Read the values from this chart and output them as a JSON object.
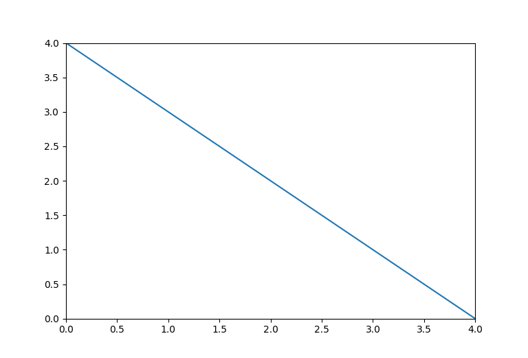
{
  "x": [
    0.0,
    4.0
  ],
  "y": [
    4.0,
    0.0
  ],
  "line_color": "#1f77b4",
  "line_width": 1.5,
  "xlim": [
    0.0,
    4.0
  ],
  "ylim": [
    0.0,
    4.0
  ],
  "xticks": [
    0.0,
    0.5,
    1.0,
    1.5,
    2.0,
    2.5,
    3.0,
    3.5,
    4.0
  ],
  "yticks": [
    0.0,
    0.5,
    1.0,
    1.5,
    2.0,
    2.5,
    3.0,
    3.5,
    4.0
  ],
  "background_color": "#ffffff",
  "figsize": [
    7.68,
    5.21
  ],
  "dpi": 100
}
